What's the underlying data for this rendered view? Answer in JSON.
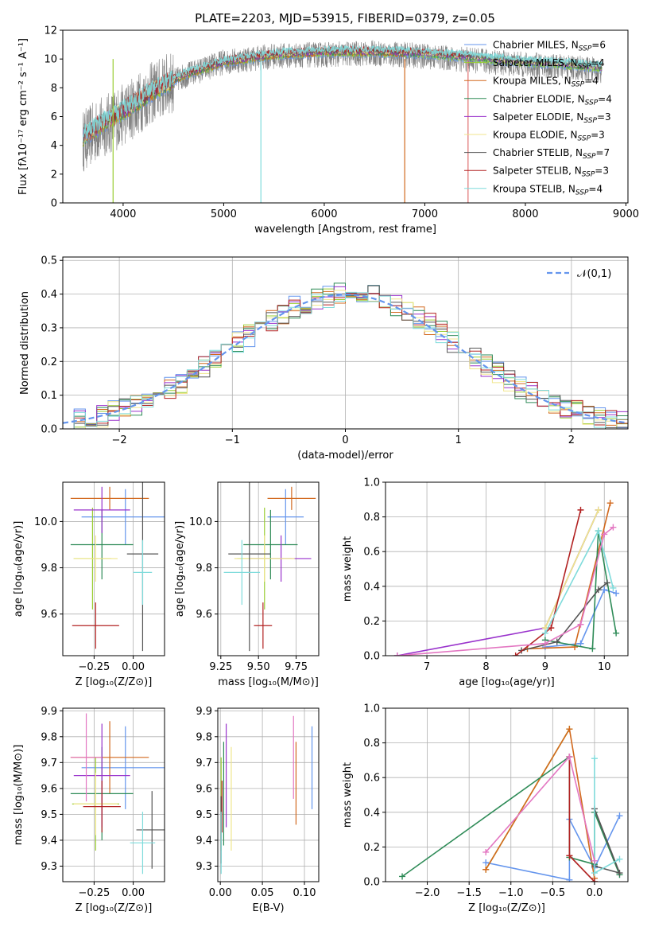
{
  "title": "PLATE=2203, MJD=53915, FIBERID=0379, z=0.05",
  "models": [
    {
      "name": "Chabrier MILES",
      "nssp": "6",
      "color": "#6495ED"
    },
    {
      "name": "Salpeter MILES",
      "nssp": "4",
      "color": "#9ACD32"
    },
    {
      "name": "Kroupa MILES",
      "nssp": "4",
      "color": "#D2691E"
    },
    {
      "name": "Chabrier ELODIE",
      "nssp": "4",
      "color": "#2E8B57"
    },
    {
      "name": "Salpeter ELODIE",
      "nssp": "3",
      "color": "#9932CC"
    },
    {
      "name": "Kroupa ELODIE",
      "nssp": "3",
      "color": "#F0E68C"
    },
    {
      "name": "Chabrier STELIB",
      "nssp": "7",
      "color": "#555555"
    },
    {
      "name": "Salpeter STELIB",
      "nssp": "3",
      "color": "#B22222"
    },
    {
      "name": "Kroupa STELIB",
      "nssp": "4",
      "color": "#7FDBDB"
    }
  ],
  "chart_data": [
    {
      "id": "spectrum",
      "type": "line",
      "xlabel": "wavelength [Angstrom, rest frame]",
      "ylabel": "Flux [fλ10⁻¹⁷ erg cm⁻² s⁻¹ A⁻¹]",
      "xlim": [
        3400,
        9020
      ],
      "ylim": [
        0,
        12
      ],
      "xticks": [
        4000,
        5000,
        6000,
        7000,
        8000,
        9000
      ],
      "yticks": [
        0,
        2,
        4,
        6,
        8,
        10,
        12
      ],
      "data_color": "#808080",
      "continuum": [
        [
          3600,
          4.3
        ],
        [
          3800,
          5.3
        ],
        [
          4000,
          6.1
        ],
        [
          4300,
          7.7
        ],
        [
          4600,
          8.8
        ],
        [
          5000,
          9.8
        ],
        [
          5500,
          10.2
        ],
        [
          6000,
          10.3
        ],
        [
          6500,
          10.4
        ],
        [
          7000,
          10.2
        ],
        [
          7500,
          9.9
        ],
        [
          8000,
          9.6
        ],
        [
          8500,
          9.4
        ],
        [
          8760,
          9.2
        ]
      ],
      "model_continuum": [
        [
          3600,
          4.4
        ],
        [
          3800,
          5.4
        ],
        [
          4000,
          6.2
        ],
        [
          4300,
          7.6
        ],
        [
          4600,
          8.7
        ],
        [
          5000,
          9.6
        ],
        [
          5500,
          10.1
        ],
        [
          6000,
          10.3
        ],
        [
          6500,
          10.3
        ],
        [
          7000,
          10.2
        ],
        [
          7500,
          9.9
        ],
        [
          8000,
          9.6
        ],
        [
          8500,
          9.4
        ],
        [
          8760,
          9.2
        ]
      ]
    },
    {
      "id": "residuals",
      "type": "histogram",
      "xlabel": "(data-model)/error",
      "ylabel": "Normed distribution",
      "xlim": [
        -2.5,
        2.5
      ],
      "ylim": [
        0,
        0.51
      ],
      "xticks": [
        -2,
        -1,
        0,
        1,
        2
      ],
      "yticks": [
        0,
        0.1,
        0.2,
        0.3,
        0.4,
        0.5
      ],
      "legend": "𝒩(0,1)",
      "gauss_color": "#6495ED",
      "bin_width": 0.1
    },
    {
      "id": "age_vs_z",
      "type": "scatter",
      "xlabel": "Z [log₁₀(Z/Z⊙)]",
      "ylabel": "age [log₁₀(age/yr)]",
      "xlim": [
        -0.45,
        0.2
      ],
      "ylim": [
        9.42,
        10.17
      ],
      "xticks": [
        -0.25,
        0.0
      ],
      "yticks": [
        9.6,
        9.8,
        10.0
      ],
      "points": [
        {
          "x": -0.05,
          "y": 10.02,
          "xe": 0.28,
          "ye": 0.12
        },
        {
          "x": -0.26,
          "y": 9.84,
          "xe": 0.12,
          "ye": 0.22
        },
        {
          "x": -0.15,
          "y": 10.1,
          "xe": 0.25,
          "ye": 0.05
        },
        {
          "x": -0.2,
          "y": 9.9,
          "xe": 0.2,
          "ye": 0.15
        },
        {
          "x": -0.2,
          "y": 10.05,
          "xe": 0.18,
          "ye": 0.1
        },
        {
          "x": -0.24,
          "y": 9.84,
          "xe": 0.14,
          "ye": 0.1
        },
        {
          "x": 0.06,
          "y": 9.86,
          "xe": 0.1,
          "ye": 0.42
        },
        {
          "x": -0.24,
          "y": 9.55,
          "xe": 0.15,
          "ye": 0.1
        },
        {
          "x": 0.06,
          "y": 9.78,
          "xe": 0.06,
          "ye": 0.14
        }
      ]
    },
    {
      "id": "age_vs_mass",
      "type": "scatter",
      "xlabel": "mass [log₁₀(M/M⊙)]",
      "ylabel": "age [log₁₀(age/yr)]",
      "xlim": [
        9.23,
        9.9
      ],
      "ylim": [
        9.42,
        10.17
      ],
      "xticks": [
        9.25,
        9.5,
        9.75
      ],
      "yticks": [
        9.6,
        9.8,
        10.0
      ],
      "points": [
        {
          "x": 9.68,
          "y": 10.02,
          "xe": 0.12,
          "ye": 0.12
        },
        {
          "x": 9.54,
          "y": 9.84,
          "xe": 0.18,
          "ye": 0.22
        },
        {
          "x": 9.72,
          "y": 10.1,
          "xe": 0.16,
          "ye": 0.05
        },
        {
          "x": 9.58,
          "y": 9.9,
          "xe": 0.18,
          "ye": 0.15
        },
        {
          "x": 9.65,
          "y": 9.84,
          "xe": 0.2,
          "ye": 0.1
        },
        {
          "x": 9.54,
          "y": 9.84,
          "xe": 0.2,
          "ye": 0.1
        },
        {
          "x": 9.44,
          "y": 9.86,
          "xe": 0.14,
          "ye": 0.42
        },
        {
          "x": 9.53,
          "y": 9.55,
          "xe": 0.06,
          "ye": 0.1
        },
        {
          "x": 9.39,
          "y": 9.78,
          "xe": 0.12,
          "ye": 0.14
        }
      ]
    },
    {
      "id": "mw_vs_age",
      "type": "line",
      "xlabel": "age [log₁₀(age/yr)]",
      "ylabel": "mass weight",
      "xlim": [
        6.3,
        10.4
      ],
      "ylim": [
        0,
        1.0
      ],
      "xticks": [
        7,
        8,
        9,
        10
      ],
      "yticks": [
        0,
        0.2,
        0.4,
        0.6,
        0.8,
        1.0
      ],
      "series": [
        {
          "pts": [
            [
              9.0,
              0.05
            ],
            [
              9.6,
              0.07
            ],
            [
              10.0,
              0.38
            ],
            [
              10.2,
              0.36
            ]
          ]
        },
        {
          "pts": [
            [
              9.0,
              0.16
            ],
            [
              9.9,
              0.84
            ]
          ]
        },
        {
          "pts": [
            [
              8.7,
              0.04
            ],
            [
              9.5,
              0.05
            ],
            [
              10.1,
              0.88
            ]
          ]
        },
        {
          "pts": [
            [
              9.0,
              0.09
            ],
            [
              9.8,
              0.04
            ],
            [
              9.9,
              0.72
            ],
            [
              10.2,
              0.13
            ]
          ]
        },
        {
          "pts": [
            [
              6.5,
              0.0
            ],
            [
              9.0,
              0.16
            ],
            [
              9.9,
              0.84
            ]
          ]
        },
        {
          "pts": [
            [
              9.0,
              0.16
            ],
            [
              9.9,
              0.84
            ]
          ]
        },
        {
          "pts": [
            [
              8.6,
              0.03
            ],
            [
              9.2,
              0.08
            ],
            [
              9.9,
              0.38
            ],
            [
              10.05,
              0.42
            ]
          ]
        },
        {
          "pts": [
            [
              8.5,
              0.0
            ],
            [
              9.1,
              0.16
            ],
            [
              9.6,
              0.84
            ]
          ]
        },
        {
          "pts": [
            [
              9.0,
              0.13
            ],
            [
              9.9,
              0.72
            ],
            [
              10.15,
              0.39
            ]
          ]
        }
      ],
      "extra_series": [
        {
          "pts": [
            [
              6.5,
              0.0
            ],
            [
              9.0,
              0.07
            ],
            [
              9.6,
              0.18
            ],
            [
              10.0,
              0.7
            ],
            [
              10.15,
              0.74
            ]
          ],
          "color": "#E377C2"
        }
      ]
    },
    {
      "id": "mass_vs_z",
      "type": "scatter",
      "xlabel": "Z [log₁₀(Z/Z⊙)]",
      "ylabel": "mass [log₁₀(M/M⊙)]",
      "xlim": [
        -0.45,
        0.2
      ],
      "ylim": [
        9.24,
        9.91
      ],
      "xticks": [
        -0.25,
        0.0
      ],
      "yticks": [
        9.3,
        9.4,
        9.5,
        9.6,
        9.7,
        9.8,
        9.9
      ],
      "points": [
        {
          "x": -0.05,
          "y": 9.68,
          "xe": 0.28,
          "ye": 0.16
        },
        {
          "x": -0.24,
          "y": 9.54,
          "xe": 0.15,
          "ye": 0.18
        },
        {
          "x": -0.15,
          "y": 9.72,
          "xe": 0.25,
          "ye": 0.14
        },
        {
          "x": -0.2,
          "y": 9.58,
          "xe": 0.2,
          "ye": 0.18
        },
        {
          "x": -0.2,
          "y": 9.65,
          "xe": 0.18,
          "ye": 0.2
        },
        {
          "x": -0.24,
          "y": 9.54,
          "xe": 0.14,
          "ye": 0.12
        },
        {
          "x": 0.12,
          "y": 9.44,
          "xe": 0.1,
          "ye": 0.15
        },
        {
          "x": -0.2,
          "y": 9.53,
          "xe": 0.12,
          "ye": 0.1
        },
        {
          "x": 0.06,
          "y": 9.39,
          "xe": 0.08,
          "ye": 0.12
        }
      ],
      "extra_points": [
        {
          "x": -0.3,
          "y": 9.72,
          "xe": 0.1,
          "ye": 0.17,
          "color": "#E377C2"
        }
      ]
    },
    {
      "id": "mass_vs_ebv",
      "type": "scatter",
      "xlabel": "E(B-V)",
      "ylabel": "",
      "xlim": [
        -0.003,
        0.117
      ],
      "ylim": [
        9.24,
        9.91
      ],
      "xticks": [
        0.0,
        0.05,
        0.1
      ],
      "yticks": [
        9.3,
        9.4,
        9.5,
        9.6,
        9.7,
        9.8,
        9.9
      ],
      "points": [
        {
          "x": 0.109,
          "y": 9.68,
          "xe": 0,
          "ye": 0.16
        },
        {
          "x": 0.001,
          "y": 9.54,
          "xe": 0,
          "ye": 0.18
        },
        {
          "x": 0.09,
          "y": 9.62,
          "xe": 0,
          "ye": 0.16
        },
        {
          "x": 0.004,
          "y": 9.58,
          "xe": 0,
          "ye": 0.2
        },
        {
          "x": 0.007,
          "y": 9.65,
          "xe": 0,
          "ye": 0.2
        },
        {
          "x": 0.013,
          "y": 9.56,
          "xe": 0,
          "ye": 0.2
        },
        {
          "x": 0.001,
          "y": 9.44,
          "xe": 0,
          "ye": 0.13
        },
        {
          "x": 0.002,
          "y": 9.53,
          "xe": 0,
          "ye": 0.1
        },
        {
          "x": 0.001,
          "y": 9.39,
          "xe": 0,
          "ye": 0.12
        }
      ],
      "extra_points": [
        {
          "x": 0.087,
          "y": 9.72,
          "xe": 0,
          "ye": 0.16,
          "color": "#E377C2"
        }
      ]
    },
    {
      "id": "mw_vs_z",
      "type": "line",
      "xlabel": "Z [log₁₀(Z/Z⊙)]",
      "ylabel": "mass weight",
      "xlim": [
        -2.5,
        0.4
      ],
      "ylim": [
        0,
        1.0
      ],
      "xticks": [
        -2.0,
        -1.5,
        -1.0,
        -0.5,
        0.0
      ],
      "yticks": [
        0,
        0.2,
        0.4,
        0.6,
        0.8,
        1.0
      ],
      "series": [
        {
          "pts": [
            [
              -1.3,
              0.11
            ],
            [
              -0.3,
              0.01
            ],
            [
              -0.3,
              0.36
            ],
            [
              0.0,
              0.08
            ],
            [
              0.3,
              0.38
            ]
          ]
        },
        {
          "pts": [
            [
              -1.3,
              0.07
            ],
            [
              -0.3,
              0.88
            ]
          ]
        },
        {
          "pts": [
            [
              -1.3,
              0.07
            ],
            [
              -0.3,
              0.88
            ],
            [
              0.0,
              0.02
            ]
          ]
        },
        {
          "pts": [
            [
              -2.3,
              0.03
            ],
            [
              -0.3,
              0.72
            ],
            [
              -0.3,
              0.14
            ],
            [
              0.0,
              0.1
            ],
            [
              0.0,
              0.4
            ],
            [
              0.3,
              0.04
            ]
          ]
        },
        {
          "pts": [
            [
              -0.3,
              0.15
            ],
            [
              0.0,
              0.0
            ]
          ]
        },
        {
          "pts": [
            [
              -0.3,
              0.15
            ],
            [
              0.0,
              0.0
            ]
          ]
        },
        {
          "pts": [
            [
              0.0,
              0.42
            ],
            [
              0.3,
              0.05
            ],
            [
              0.0,
              0.09
            ]
          ]
        },
        {
          "pts": [
            [
              -0.3,
              0.72
            ],
            [
              -0.3,
              0.15
            ],
            [
              0.0,
              0.0
            ]
          ]
        },
        {
          "pts": [
            [
              0.0,
              0.71
            ],
            [
              0.0,
              0.05
            ],
            [
              0.3,
              0.13
            ]
          ]
        }
      ],
      "extra_series": [
        {
          "pts": [
            [
              -1.3,
              0.17
            ],
            [
              -0.3,
              0.72
            ],
            [
              0.0,
              0.12
            ]
          ],
          "color": "#E377C2"
        }
      ]
    }
  ]
}
